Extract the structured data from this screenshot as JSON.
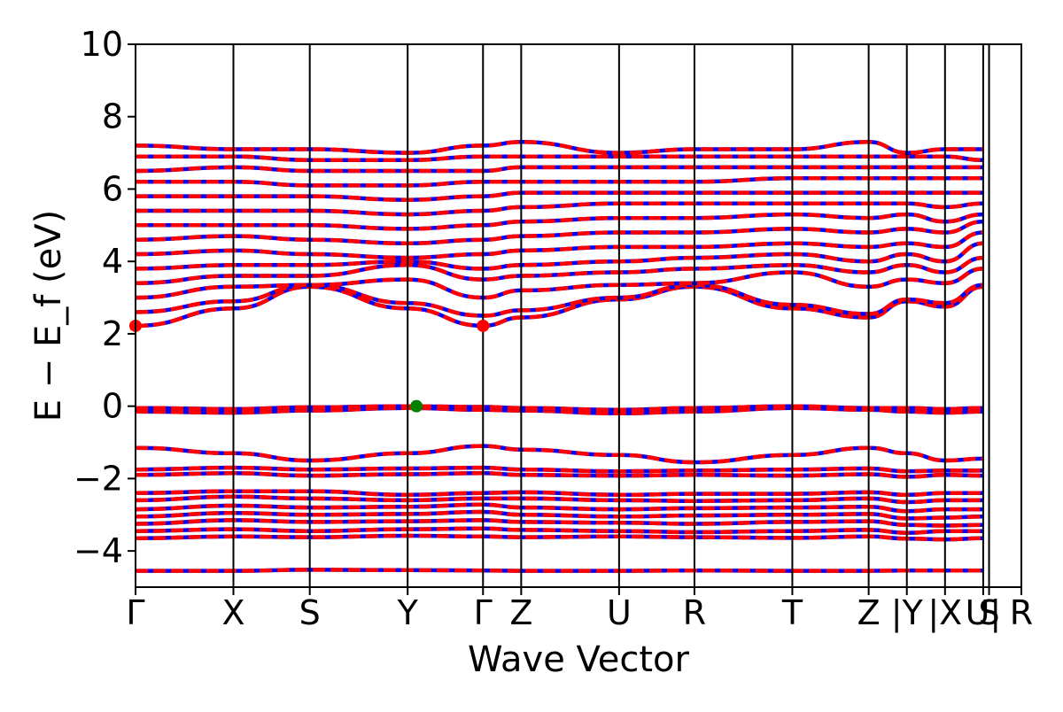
{
  "chart_data": {
    "type": "line",
    "title": "",
    "xlabel": "Wave Vector",
    "ylabel": "E − E_f (eV)",
    "ylim": [
      -5,
      10
    ],
    "yticks": [
      -4,
      -2,
      0,
      2,
      4,
      6,
      8,
      10
    ],
    "ytick_labels": [
      "−4",
      "−2",
      "0",
      "2",
      "4",
      "6",
      "8",
      "10"
    ],
    "grid": false,
    "legend": "none",
    "colors": {
      "spin_up": "#ff0000",
      "spin_down": "#0000ff",
      "cbm_marker": "#ff0000",
      "vbm_marker": "#008000"
    },
    "kpoints": [
      {
        "label": "Γ",
        "x": 0.0
      },
      {
        "label": "X",
        "x": 1.0
      },
      {
        "label": "S",
        "x": 1.78
      },
      {
        "label": "Y",
        "x": 2.78
      },
      {
        "label": "Γ",
        "x": 3.55
      },
      {
        "label": "Z",
        "x": 3.94
      },
      {
        "label": "U",
        "x": 4.94
      },
      {
        "label": "R",
        "x": 5.71
      },
      {
        "label": "T",
        "x": 6.71
      },
      {
        "label": "Z",
        "x": 7.49
      },
      {
        "label": "|Y",
        "x": 7.88
      },
      {
        "label": "|X",
        "x": 8.27
      },
      {
        "label": "U|",
        "x": 8.66
      },
      {
        "label": "S",
        "x": 8.72
      },
      {
        "label": "R",
        "x": 9.05
      }
    ],
    "xlim": [
      0.0,
      9.05
    ],
    "markers": [
      {
        "name": "CBM",
        "x": 0.0,
        "y": 2.22
      },
      {
        "name": "CBM",
        "x": 3.55,
        "y": 2.22
      },
      {
        "name": "VBM",
        "x": 2.87,
        "y": 0.0
      }
    ],
    "bands": [
      [
        -4.55,
        -4.55,
        -4.52,
        -4.53,
        -4.54,
        -4.55,
        -4.55,
        -4.54,
        -4.55,
        -4.55,
        -4.54,
        -4.54,
        -4.54
      ],
      [
        -3.65,
        -3.6,
        -3.62,
        -3.58,
        -3.6,
        -3.62,
        -3.6,
        -3.62,
        -3.64,
        -3.6,
        -3.66,
        -3.68,
        -3.65
      ],
      [
        -3.45,
        -3.4,
        -3.45,
        -3.4,
        -3.38,
        -3.42,
        -3.45,
        -3.48,
        -3.45,
        -3.42,
        -3.5,
        -3.45,
        -3.45
      ],
      [
        -3.25,
        -3.15,
        -3.2,
        -3.18,
        -3.15,
        -3.2,
        -3.22,
        -3.25,
        -3.2,
        -3.18,
        -3.28,
        -3.3,
        -3.28
      ],
      [
        -3.05,
        -2.95,
        -3.0,
        -2.98,
        -2.92,
        -3.0,
        -3.05,
        -3.02,
        -3.0,
        -2.98,
        -3.1,
        -3.08,
        -3.05
      ],
      [
        -2.85,
        -2.75,
        -2.8,
        -2.78,
        -2.72,
        -2.8,
        -2.85,
        -2.82,
        -2.8,
        -2.78,
        -2.9,
        -2.85,
        -2.85
      ],
      [
        -2.6,
        -2.5,
        -2.55,
        -2.6,
        -2.55,
        -2.55,
        -2.6,
        -2.62,
        -2.6,
        -2.55,
        -2.65,
        -2.6,
        -2.6
      ],
      [
        -2.4,
        -2.35,
        -2.35,
        -2.45,
        -2.4,
        -2.38,
        -2.45,
        -2.42,
        -2.42,
        -2.38,
        -2.45,
        -2.4,
        -2.4
      ],
      [
        -1.9,
        -1.85,
        -1.92,
        -1.88,
        -1.85,
        -1.9,
        -1.92,
        -1.9,
        -1.92,
        -1.88,
        -1.95,
        -1.9,
        -1.92
      ],
      [
        -1.75,
        -1.7,
        -1.75,
        -1.72,
        -1.7,
        -1.75,
        -1.8,
        -1.78,
        -1.75,
        -1.72,
        -1.8,
        -1.78,
        -1.78
      ],
      [
        -1.15,
        -1.3,
        -1.5,
        -1.3,
        -1.1,
        -1.2,
        -1.35,
        -1.55,
        -1.35,
        -1.15,
        -1.3,
        -1.5,
        -1.45
      ],
      [
        -0.15,
        -0.18,
        -0.12,
        -0.05,
        -0.1,
        -0.12,
        -0.2,
        -0.15,
        -0.05,
        -0.1,
        -0.15,
        -0.18,
        -0.15
      ],
      [
        -0.05,
        -0.08,
        -0.03,
        0.0,
        -0.02,
        -0.05,
        -0.1,
        -0.05,
        0.0,
        -0.05,
        -0.05,
        -0.08,
        -0.05
      ],
      [
        2.22,
        2.7,
        3.3,
        2.7,
        2.22,
        2.45,
        2.95,
        3.3,
        2.7,
        2.45,
        2.9,
        2.75,
        3.3
      ],
      [
        2.6,
        2.9,
        3.35,
        2.85,
        2.5,
        2.65,
        3.0,
        3.35,
        2.8,
        2.55,
        2.95,
        2.85,
        3.35
      ],
      [
        3.0,
        3.3,
        3.35,
        3.5,
        3.0,
        3.2,
        3.35,
        3.4,
        3.7,
        3.3,
        3.5,
        3.4,
        3.8
      ],
      [
        3.4,
        3.6,
        3.6,
        3.9,
        3.5,
        3.6,
        3.7,
        3.8,
        3.9,
        3.7,
        3.9,
        3.7,
        4.1
      ],
      [
        3.8,
        3.9,
        3.9,
        4.0,
        3.8,
        3.9,
        4.0,
        4.1,
        4.2,
        4.0,
        4.2,
        4.0,
        4.5
      ],
      [
        4.2,
        4.3,
        4.2,
        4.1,
        4.2,
        4.3,
        4.4,
        4.4,
        4.5,
        4.4,
        4.5,
        4.4,
        4.8
      ],
      [
        4.6,
        4.7,
        4.6,
        4.5,
        4.6,
        4.7,
        4.8,
        4.8,
        4.9,
        4.8,
        4.9,
        4.8,
        5.1
      ],
      [
        5.0,
        5.0,
        5.0,
        4.9,
        5.0,
        5.1,
        5.2,
        5.2,
        5.3,
        5.2,
        5.3,
        5.1,
        5.3
      ],
      [
        5.4,
        5.4,
        5.4,
        5.3,
        5.4,
        5.5,
        5.6,
        5.6,
        5.6,
        5.6,
        5.6,
        5.5,
        5.6
      ],
      [
        5.8,
        5.8,
        5.8,
        5.7,
        5.8,
        5.9,
        5.9,
        5.9,
        5.9,
        5.9,
        5.9,
        5.9,
        5.9
      ],
      [
        6.2,
        6.2,
        6.1,
        6.1,
        6.2,
        6.2,
        6.2,
        6.2,
        6.3,
        6.3,
        6.3,
        6.3,
        6.3
      ],
      [
        6.5,
        6.6,
        6.5,
        6.5,
        6.5,
        6.6,
        6.6,
        6.6,
        6.6,
        6.6,
        6.6,
        6.6,
        6.6
      ],
      [
        6.9,
        6.9,
        6.8,
        6.8,
        6.9,
        6.9,
        6.9,
        6.9,
        6.9,
        6.9,
        6.9,
        6.9,
        6.8
      ],
      [
        7.2,
        7.1,
        7.1,
        7.0,
        7.2,
        7.3,
        7.0,
        7.1,
        7.1,
        7.3,
        7.0,
        7.1,
        7.1
      ]
    ]
  }
}
